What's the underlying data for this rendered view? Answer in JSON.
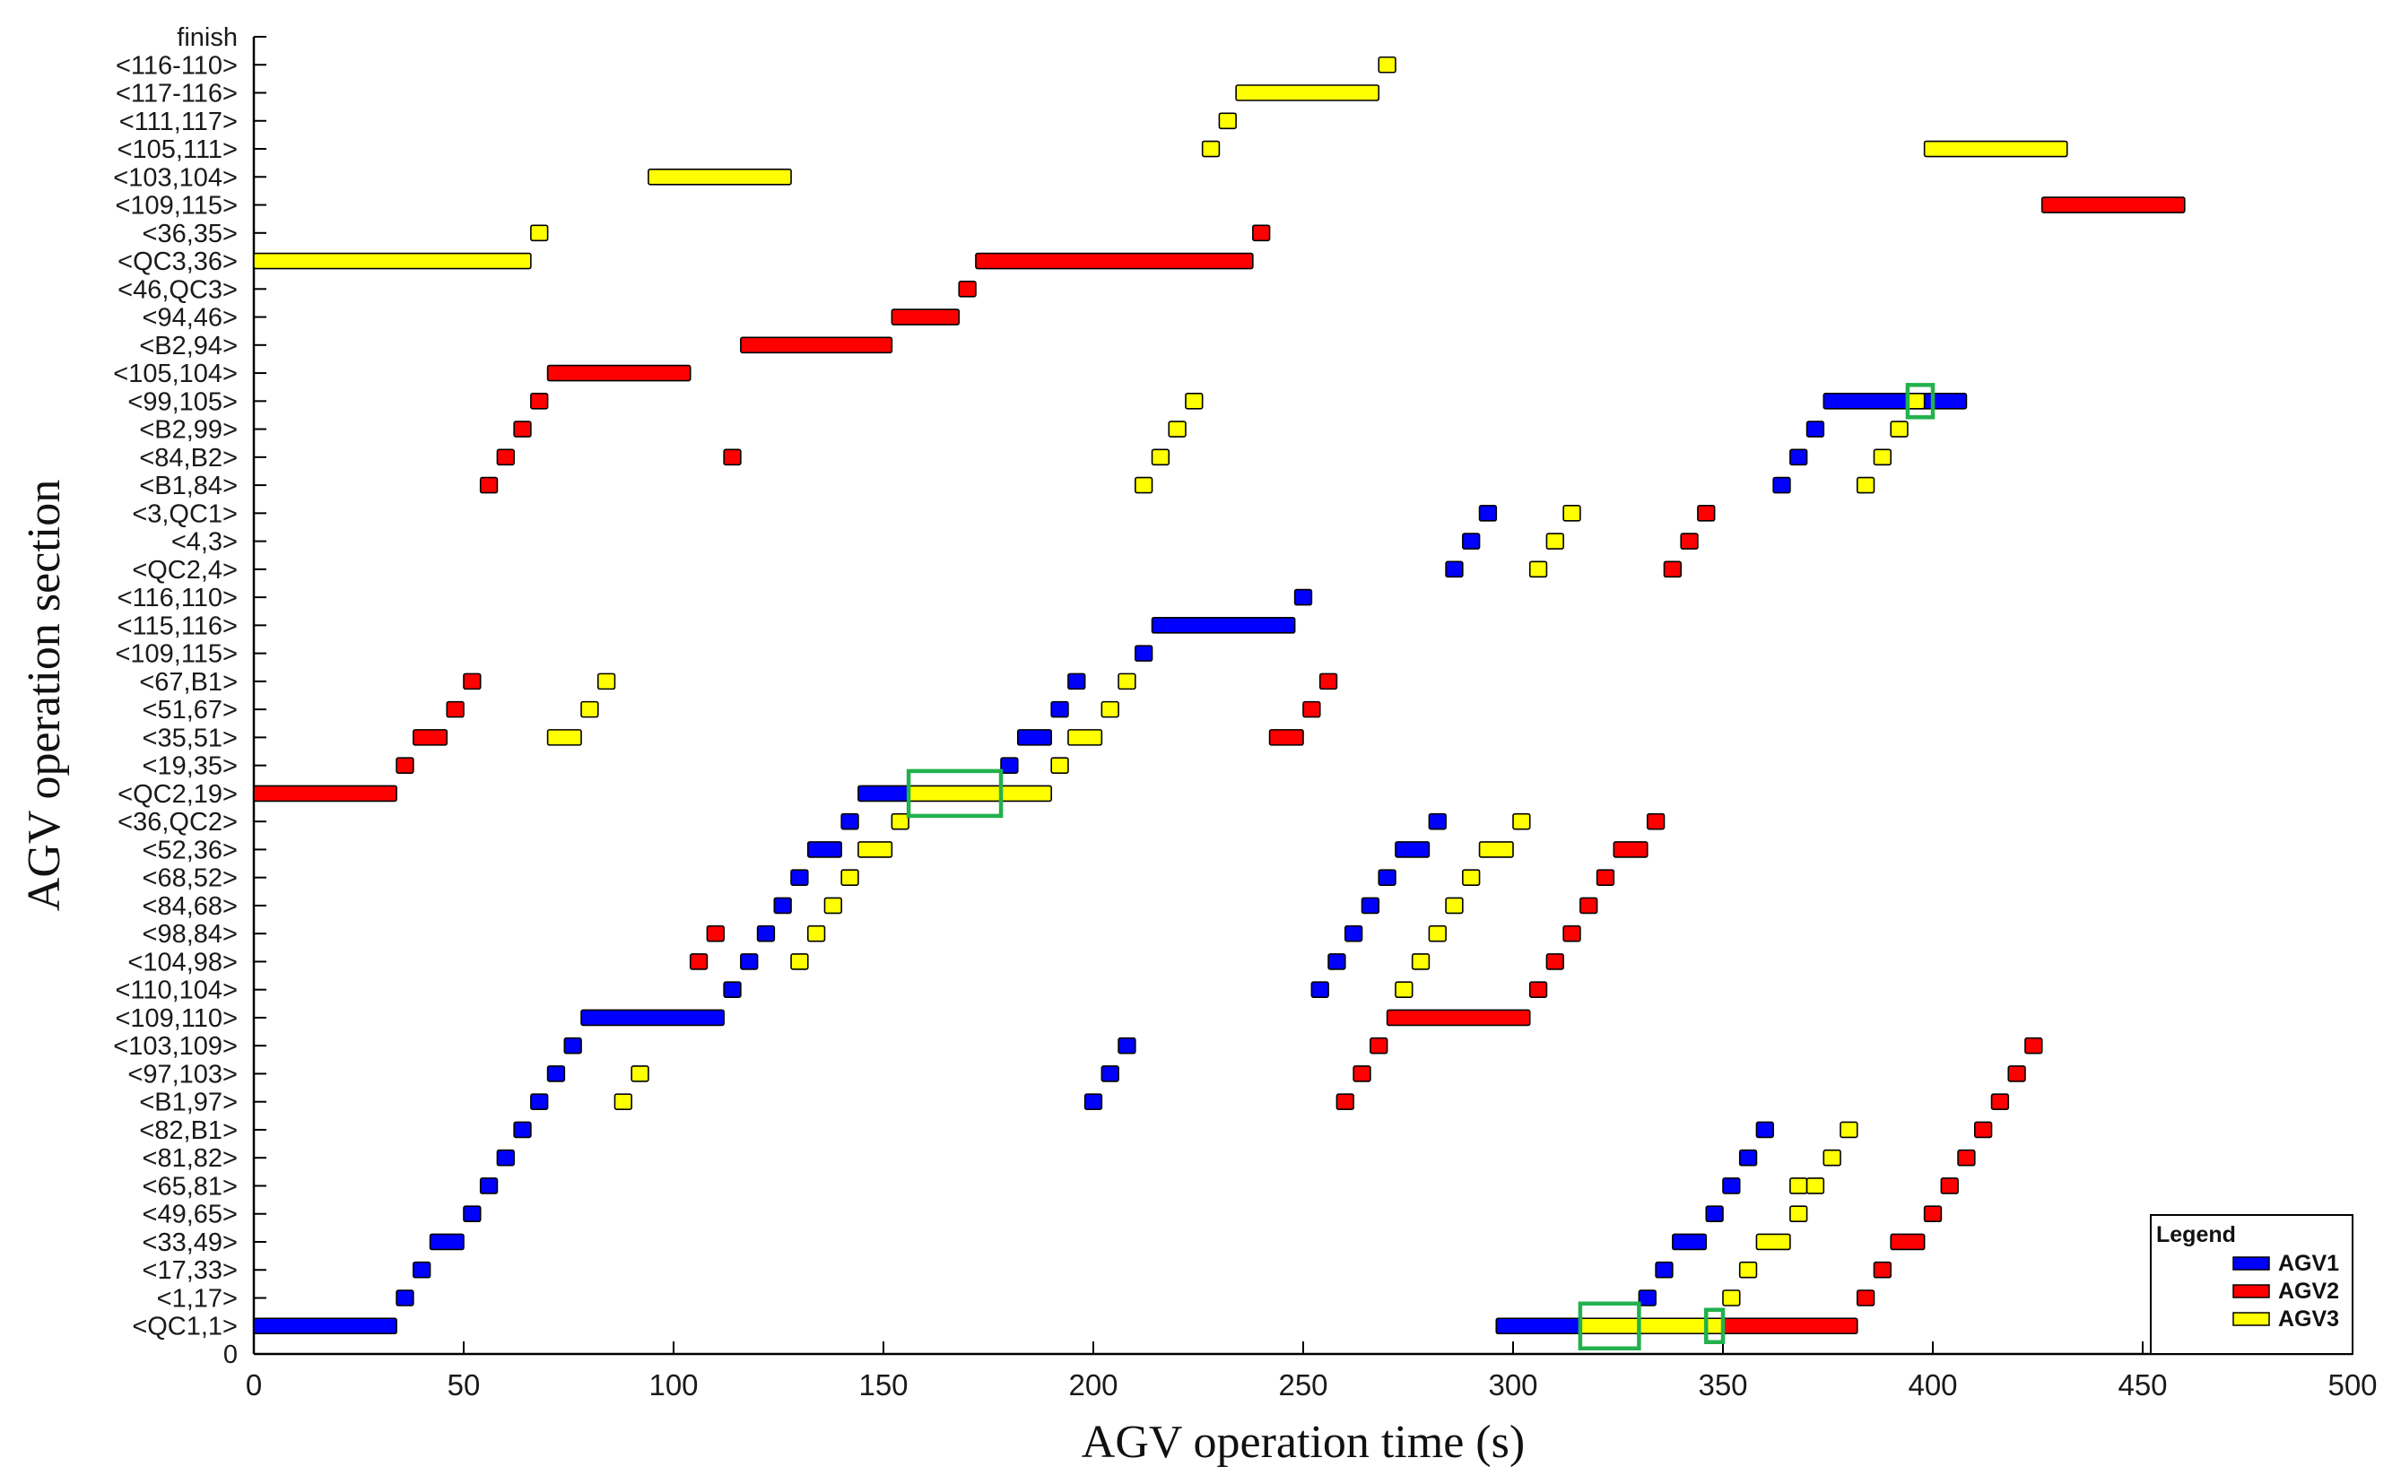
{
  "chart_data": {
    "type": "gantt",
    "xlabel": "AGV operation time (s)",
    "ylabel": "AGV operation section",
    "xlim": [
      0,
      500
    ],
    "xticks": [
      0,
      50,
      100,
      150,
      200,
      250,
      300,
      350,
      400,
      450,
      500
    ],
    "categories": [
      "0",
      "<QC1,1>",
      "<1,17>",
      "<17,33>",
      "<33,49>",
      "<49,65>",
      "<65,81>",
      "<81,82>",
      "<82,B1>",
      "<B1,97>",
      "<97,103>",
      "<103,109>",
      "<109,110>",
      "<110,104>",
      "<104,98>",
      "<98,84>",
      "<84,68>",
      "<68,52>",
      "<52,36>",
      "<36,QC2>",
      "<QC2,19>",
      "<19,35>",
      "<35,51>",
      "<51,67>",
      "<67,B1>",
      "<109,115>",
      "<115,116>",
      "<116,110>",
      "<QC2,4>",
      "<4,3>",
      "<3,QC1>",
      "<B1,84>",
      "<84,B2>",
      "<B2,99>",
      "<99,105>",
      "<105,104>",
      "<B2,94>",
      "<94,46>",
      "<46,QC3>",
      "<QC3,36>",
      "<36,35>",
      "<109,115>",
      "<103,104>",
      "<105,111>",
      "<111,117>",
      "<117-116>",
      "<116-110>",
      "finish"
    ],
    "series": [
      {
        "name": "AGV1",
        "color": "#0000ff",
        "tasks": [
          {
            "section": 1,
            "start": 0,
            "end": 34
          },
          {
            "section": 2,
            "start": 34,
            "end": 38
          },
          {
            "section": 3,
            "start": 38,
            "end": 42
          },
          {
            "section": 4,
            "start": 42,
            "end": 50
          },
          {
            "section": 5,
            "start": 50,
            "end": 54
          },
          {
            "section": 6,
            "start": 54,
            "end": 58
          },
          {
            "section": 7,
            "start": 58,
            "end": 62
          },
          {
            "section": 8,
            "start": 62,
            "end": 66
          },
          {
            "section": 9,
            "start": 66,
            "end": 70
          },
          {
            "section": 10,
            "start": 70,
            "end": 74
          },
          {
            "section": 11,
            "start": 74,
            "end": 78
          },
          {
            "section": 12,
            "start": 78,
            "end": 112
          },
          {
            "section": 13,
            "start": 112,
            "end": 116
          },
          {
            "section": 14,
            "start": 116,
            "end": 120
          },
          {
            "section": 15,
            "start": 120,
            "end": 124
          },
          {
            "section": 16,
            "start": 124,
            "end": 128
          },
          {
            "section": 17,
            "start": 128,
            "end": 132
          },
          {
            "section": 18,
            "start": 132,
            "end": 140
          },
          {
            "section": 19,
            "start": 140,
            "end": 144
          },
          {
            "section": 20,
            "start": 144,
            "end": 156
          },
          {
            "section": 21,
            "start": 178,
            "end": 182
          },
          {
            "section": 22,
            "start": 182,
            "end": 190
          },
          {
            "section": 23,
            "start": 190,
            "end": 194
          },
          {
            "section": 24,
            "start": 194,
            "end": 198
          },
          {
            "section": 9,
            "start": 198,
            "end": 202
          },
          {
            "section": 10,
            "start": 202,
            "end": 206
          },
          {
            "section": 11,
            "start": 206,
            "end": 210
          },
          {
            "section": 25,
            "start": 210,
            "end": 214
          },
          {
            "section": 26,
            "start": 214,
            "end": 248
          },
          {
            "section": 27,
            "start": 248,
            "end": 252
          },
          {
            "section": 13,
            "start": 252,
            "end": 256
          },
          {
            "section": 14,
            "start": 256,
            "end": 260
          },
          {
            "section": 15,
            "start": 260,
            "end": 264
          },
          {
            "section": 16,
            "start": 264,
            "end": 268
          },
          {
            "section": 17,
            "start": 268,
            "end": 272
          },
          {
            "section": 18,
            "start": 272,
            "end": 280
          },
          {
            "section": 19,
            "start": 280,
            "end": 284
          },
          {
            "section": 28,
            "start": 284,
            "end": 288
          },
          {
            "section": 29,
            "start": 288,
            "end": 292
          },
          {
            "section": 30,
            "start": 292,
            "end": 296
          },
          {
            "section": 1,
            "start": 296,
            "end": 330
          },
          {
            "section": 2,
            "start": 330,
            "end": 334
          },
          {
            "section": 3,
            "start": 334,
            "end": 338
          },
          {
            "section": 4,
            "start": 338,
            "end": 346
          },
          {
            "section": 5,
            "start": 346,
            "end": 350
          },
          {
            "section": 6,
            "start": 350,
            "end": 354
          },
          {
            "section": 7,
            "start": 354,
            "end": 358
          },
          {
            "section": 8,
            "start": 358,
            "end": 362
          },
          {
            "section": 31,
            "start": 362,
            "end": 366
          },
          {
            "section": 32,
            "start": 366,
            "end": 370
          },
          {
            "section": 33,
            "start": 370,
            "end": 374
          },
          {
            "section": 34,
            "start": 374,
            "end": 408
          }
        ]
      },
      {
        "name": "AGV2",
        "color": "#ff0000",
        "tasks": [
          {
            "section": 20,
            "start": 0,
            "end": 34
          },
          {
            "section": 21,
            "start": 34,
            "end": 38
          },
          {
            "section": 22,
            "start": 38,
            "end": 46
          },
          {
            "section": 23,
            "start": 46,
            "end": 50
          },
          {
            "section": 24,
            "start": 50,
            "end": 54
          },
          {
            "section": 31,
            "start": 54,
            "end": 58
          },
          {
            "section": 32,
            "start": 58,
            "end": 62
          },
          {
            "section": 33,
            "start": 62,
            "end": 66
          },
          {
            "section": 34,
            "start": 66,
            "end": 70
          },
          {
            "section": 35,
            "start": 70,
            "end": 104
          },
          {
            "section": 14,
            "start": 104,
            "end": 108
          },
          {
            "section": 15,
            "start": 108,
            "end": 112
          },
          {
            "section": 32,
            "start": 112,
            "end": 116
          },
          {
            "section": 36,
            "start": 116,
            "end": 152
          },
          {
            "section": 37,
            "start": 152,
            "end": 168
          },
          {
            "section": 38,
            "start": 168,
            "end": 172
          },
          {
            "section": 39,
            "start": 172,
            "end": 238
          },
          {
            "section": 40,
            "start": 238,
            "end": 242
          },
          {
            "section": 22,
            "start": 242,
            "end": 250
          },
          {
            "section": 23,
            "start": 250,
            "end": 254
          },
          {
            "section": 24,
            "start": 254,
            "end": 258
          },
          {
            "section": 9,
            "start": 258,
            "end": 262
          },
          {
            "section": 10,
            "start": 262,
            "end": 266
          },
          {
            "section": 11,
            "start": 266,
            "end": 270
          },
          {
            "section": 12,
            "start": 270,
            "end": 304
          },
          {
            "section": 13,
            "start": 304,
            "end": 308
          },
          {
            "section": 14,
            "start": 308,
            "end": 312
          },
          {
            "section": 15,
            "start": 312,
            "end": 316
          },
          {
            "section": 16,
            "start": 316,
            "end": 320
          },
          {
            "section": 17,
            "start": 320,
            "end": 324
          },
          {
            "section": 18,
            "start": 324,
            "end": 332
          },
          {
            "section": 19,
            "start": 332,
            "end": 336
          },
          {
            "section": 28,
            "start": 336,
            "end": 340
          },
          {
            "section": 29,
            "start": 340,
            "end": 344
          },
          {
            "section": 30,
            "start": 344,
            "end": 348
          },
          {
            "section": 1,
            "start": 348,
            "end": 382
          },
          {
            "section": 2,
            "start": 382,
            "end": 386
          },
          {
            "section": 3,
            "start": 386,
            "end": 390
          },
          {
            "section": 4,
            "start": 390,
            "end": 398
          },
          {
            "section": 5,
            "start": 398,
            "end": 402
          },
          {
            "section": 6,
            "start": 402,
            "end": 406
          },
          {
            "section": 7,
            "start": 406,
            "end": 410
          },
          {
            "section": 8,
            "start": 410,
            "end": 414
          },
          {
            "section": 9,
            "start": 414,
            "end": 418
          },
          {
            "section": 10,
            "start": 418,
            "end": 422
          },
          {
            "section": 11,
            "start": 422,
            "end": 426
          },
          {
            "section": 41,
            "start": 426,
            "end": 460
          }
        ]
      },
      {
        "name": "AGV3",
        "color": "#ffff00",
        "tasks": [
          {
            "section": 39,
            "start": 0,
            "end": 66
          },
          {
            "section": 40,
            "start": 66,
            "end": 70
          },
          {
            "section": 22,
            "start": 70,
            "end": 78
          },
          {
            "section": 23,
            "start": 78,
            "end": 82
          },
          {
            "section": 24,
            "start": 82,
            "end": 86
          },
          {
            "section": 9,
            "start": 86,
            "end": 90
          },
          {
            "section": 10,
            "start": 90,
            "end": 94
          },
          {
            "section": 42,
            "start": 94,
            "end": 128
          },
          {
            "section": 14,
            "start": 128,
            "end": 132
          },
          {
            "section": 15,
            "start": 132,
            "end": 136
          },
          {
            "section": 16,
            "start": 136,
            "end": 140
          },
          {
            "section": 17,
            "start": 140,
            "end": 144
          },
          {
            "section": 18,
            "start": 144,
            "end": 152
          },
          {
            "section": 19,
            "start": 152,
            "end": 156
          },
          {
            "section": 20,
            "start": 156,
            "end": 190
          },
          {
            "section": 21,
            "start": 190,
            "end": 194
          },
          {
            "section": 22,
            "start": 194,
            "end": 202
          },
          {
            "section": 23,
            "start": 202,
            "end": 206
          },
          {
            "section": 24,
            "start": 206,
            "end": 210
          },
          {
            "section": 31,
            "start": 210,
            "end": 214
          },
          {
            "section": 32,
            "start": 214,
            "end": 218
          },
          {
            "section": 33,
            "start": 218,
            "end": 222
          },
          {
            "section": 34,
            "start": 222,
            "end": 226
          },
          {
            "section": 43,
            "start": 226,
            "end": 230
          },
          {
            "section": 44,
            "start": 230,
            "end": 234
          },
          {
            "section": 45,
            "start": 234,
            "end": 268
          },
          {
            "section": 46,
            "start": 268,
            "end": 272
          },
          {
            "section": 13,
            "start": 272,
            "end": 276
          },
          {
            "section": 14,
            "start": 276,
            "end": 280
          },
          {
            "section": 15,
            "start": 280,
            "end": 284
          },
          {
            "section": 16,
            "start": 284,
            "end": 288
          },
          {
            "section": 17,
            "start": 288,
            "end": 292
          },
          {
            "section": 18,
            "start": 292,
            "end": 300
          },
          {
            "section": 19,
            "start": 300,
            "end": 304
          },
          {
            "section": 28,
            "start": 304,
            "end": 308
          },
          {
            "section": 29,
            "start": 308,
            "end": 312
          },
          {
            "section": 30,
            "start": 312,
            "end": 316
          },
          {
            "section": 1,
            "start": 316,
            "end": 350
          },
          {
            "section": 2,
            "start": 350,
            "end": 354
          },
          {
            "section": 3,
            "start": 354,
            "end": 358
          },
          {
            "section": 4,
            "start": 358,
            "end": 366
          },
          {
            "section": 5,
            "start": 366,
            "end": 370
          },
          {
            "section": 6,
            "start": 366,
            "end": 370
          },
          {
            "section": 6,
            "start": 370,
            "end": 374
          },
          {
            "section": 7,
            "start": 374,
            "end": 378
          },
          {
            "section": 8,
            "start": 378,
            "end": 382
          },
          {
            "section": 31,
            "start": 382,
            "end": 386
          },
          {
            "section": 32,
            "start": 386,
            "end": 390
          },
          {
            "section": 33,
            "start": 390,
            "end": 394
          },
          {
            "section": 34,
            "start": 394,
            "end": 398
          },
          {
            "section": 43,
            "start": 398,
            "end": 432
          }
        ]
      }
    ],
    "conflict_highlights": [
      {
        "section": 20,
        "start": 156,
        "end": 178,
        "color": "#22b14c"
      },
      {
        "section": 1,
        "start": 316,
        "end": 330,
        "color": "#22b14c"
      },
      {
        "section": 1,
        "start": 346,
        "end": 350,
        "color": "#22b14c"
      },
      {
        "section": 34,
        "start": 394,
        "end": 400,
        "color": "#22b14c"
      }
    ],
    "legend": {
      "title": "Legend",
      "position": "bottom-right",
      "entries": [
        {
          "label": "AGV1",
          "color": "#0000ff"
        },
        {
          "label": "AGV2",
          "color": "#ff0000"
        },
        {
          "label": "AGV3",
          "color": "#ffff00"
        }
      ]
    }
  }
}
